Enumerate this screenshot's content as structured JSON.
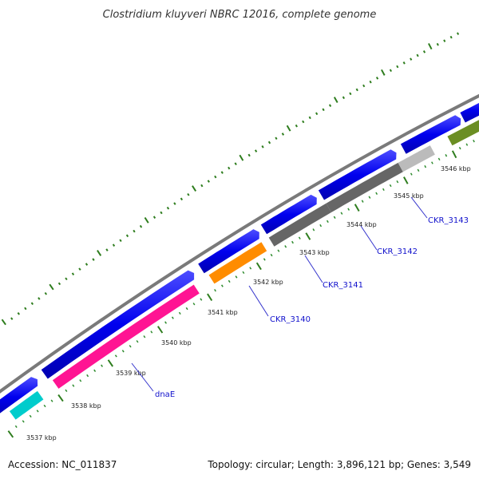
{
  "title": "Clostridium kluyveri NBRC 12016, complete genome",
  "footer": {
    "accession": "Accession: NC_011837",
    "summary": "Topology: circular; Length: 3,896,121 bp; Genes: 3,549"
  },
  "colors": {
    "backbone": "#808080",
    "forward_cds": "#0000ee",
    "tick_major": "#2e7d1e",
    "tick_minor": "#2e8b2e",
    "label": "#1010cc"
  },
  "kbp_labels": [
    "3537 kbp",
    "3538 kbp",
    "3539 kbp",
    "3540 kbp",
    "3541 kbp",
    "3542 kbp",
    "3543 kbp",
    "3544 kbp",
    "3545 kbp",
    "3546 kbp"
  ],
  "genes": [
    {
      "label": "dnaE",
      "color": "#ff1493"
    },
    {
      "label": "CKR_3140",
      "color": "#ff8c00"
    },
    {
      "label": "CKR_3141",
      "color": "#666666"
    },
    {
      "label": "CKR_3142",
      "color": "#666666"
    },
    {
      "label": "CKR_3143",
      "color": "#bbbbbb"
    },
    {
      "label": "",
      "color": "#6b8e23"
    },
    {
      "label": "",
      "color": "#00cccc"
    }
  ]
}
